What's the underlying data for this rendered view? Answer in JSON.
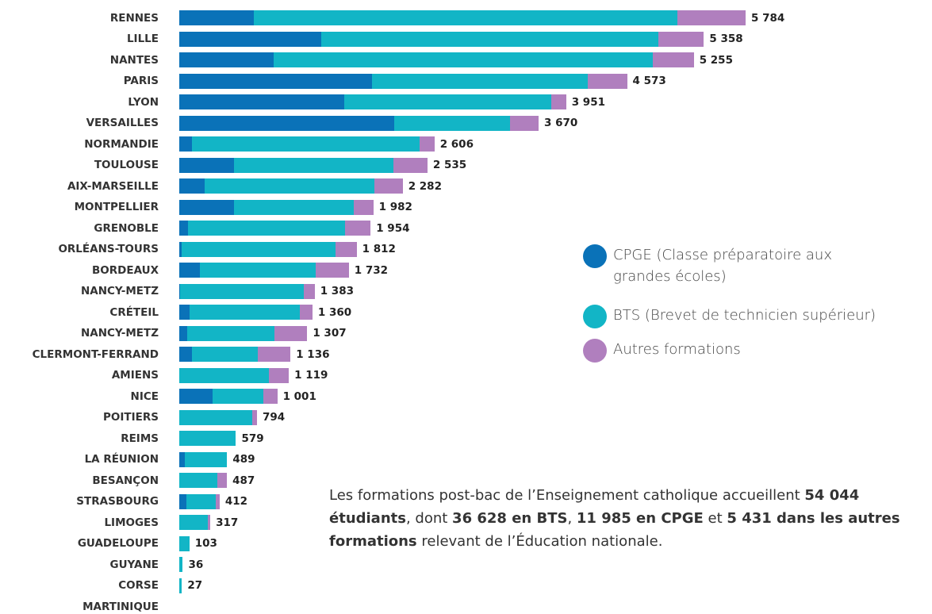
{
  "chart_data": {
    "type": "stacked-barh",
    "categories": [
      "RENNES",
      "LILLE",
      "NANTES",
      "PARIS",
      "LYON",
      "VERSAILLES",
      "NORMANDIE",
      "TOULOUSE",
      "AIX-MARSEILLE",
      "MONTPELLIER",
      "GRENOBLE",
      "ORLÉANS-TOURS",
      "BORDEAUX",
      "NANCY-METZ",
      "CRÉTEIL",
      "NANCY-METZ",
      "CLERMONT-FERRAND",
      "AMIENS",
      "NICE",
      "POITIERS",
      "REIMS",
      "LA RÉUNION",
      "BESANÇON",
      "STRASBOURG",
      "LIMOGES",
      "GUADELOUPE",
      "GUYANE",
      "CORSE",
      "MARTINIQUE"
    ],
    "series": [
      {
        "name": "CPGE (Classe préparatoire aux grandes écoles)",
        "color": "#0a72b8",
        "values": [
          762,
          1450,
          964,
          1968,
          1685,
          2196,
          130,
          559,
          259,
          559,
          89,
          24,
          211,
          8,
          105,
          81,
          130,
          0,
          340,
          0,
          0,
          57,
          0,
          73,
          0,
          0,
          0,
          0,
          null
        ]
      },
      {
        "name": "BTS (Brevet de technicien supérieur)",
        "color": "#12b5c6",
        "values": [
          4327,
          3443,
          3873,
          2204,
          2114,
          1183,
          2325,
          1628,
          1733,
          1223,
          1604,
          1571,
          1183,
          1264,
          1126,
          891,
          672,
          915,
          518,
          745,
          579,
          432,
          389,
          300,
          292,
          103,
          36,
          27,
          null
        ]
      },
      {
        "name": "Autres formations",
        "color": "#b07fbe",
        "values": [
          695,
          465,
          418,
          401,
          152,
          291,
          151,
          348,
          290,
          200,
          261,
          217,
          338,
          111,
          129,
          335,
          334,
          204,
          143,
          49,
          0,
          0,
          98,
          39,
          25,
          0,
          0,
          0,
          null
        ]
      }
    ],
    "totals": [
      5784,
      5358,
      5255,
      4573,
      3951,
      3670,
      2606,
      2535,
      2282,
      1982,
      1954,
      1812,
      1732,
      1383,
      1360,
      1307,
      1136,
      1119,
      1001,
      794,
      579,
      489,
      487,
      412,
      317,
      103,
      36,
      27,
      null
    ],
    "total_labels": [
      "5 784",
      "5 358",
      "5 255",
      "4 573",
      "3 951",
      "3 670",
      "2 606",
      "2 535",
      "2 282",
      "1 982",
      "1 954",
      "1 812",
      "1 732",
      "1 383",
      "1 360",
      "1 307",
      "1 136",
      "1 119",
      "1 001",
      "794",
      "579",
      "489",
      "487",
      "412",
      "317",
      "103",
      "36",
      "27",
      null
    ],
    "annotation": [
      {
        "text": "Les formations post-bac de l’Enseignement catholique accueillent ",
        "bold": false
      },
      {
        "text": "54 044 étudiants",
        "bold": true
      },
      {
        "text": ", dont ",
        "bold": false
      },
      {
        "text": "36 628 en BTS",
        "bold": true
      },
      {
        "text": ", ",
        "bold": false
      },
      {
        "text": "11 985 en CPGE",
        "bold": true
      },
      {
        "text": " et ",
        "bold": false
      },
      {
        "text": "5 431 dans les autres formations",
        "bold": true
      },
      {
        "text": " relevant de l’Éducation nationale.",
        "bold": false
      }
    ]
  }
}
